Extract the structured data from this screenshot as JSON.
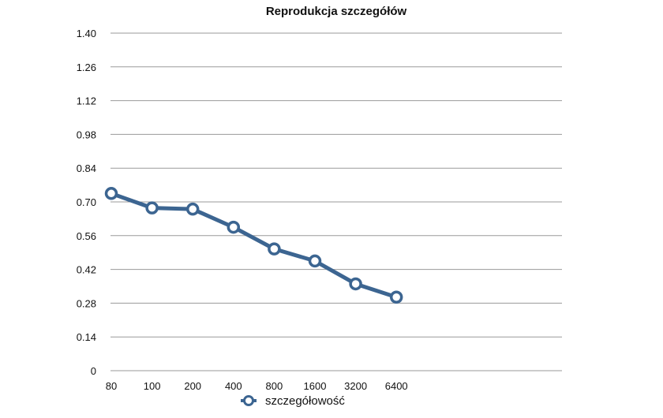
{
  "chart_data": {
    "type": "line",
    "title": "Reprodukcja szczegółów",
    "categories": [
      "80",
      "100",
      "200",
      "400",
      "800",
      "1600",
      "3200",
      "6400"
    ],
    "series": [
      {
        "name": "szczegółowość",
        "values": [
          0.735,
          0.675,
          0.67,
          0.595,
          0.505,
          0.455,
          0.36,
          0.305
        ]
      }
    ],
    "yticks": [
      "0",
      "0.14",
      "0.28",
      "0.42",
      "0.56",
      "0.70",
      "0.84",
      "0.98",
      "1.12",
      "1.26",
      "1.40"
    ],
    "ylim": [
      0,
      1.4
    ],
    "grid": true,
    "legend_position": "bottom",
    "colors": {
      "series": "#3c6591",
      "marker_fill": "#ffffff",
      "grid": "#9a9a9a"
    }
  }
}
